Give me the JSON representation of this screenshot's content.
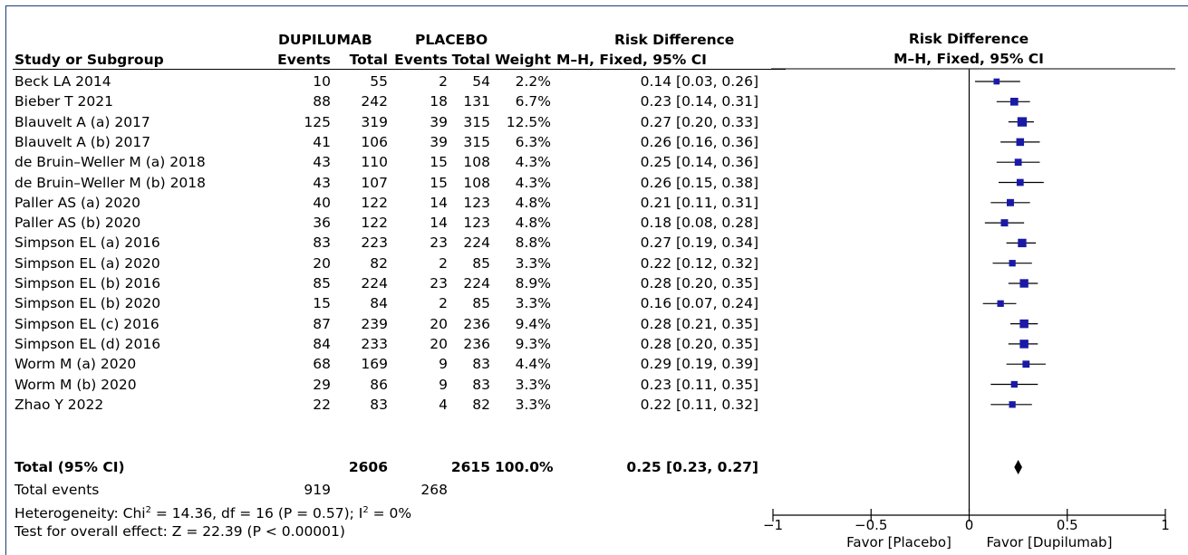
{
  "header": {
    "group1": "DUPILUMAB",
    "group2": "PLACEBO",
    "rd_title": "Risk Difference",
    "col_study": "Study or Subgroup",
    "col_events1": "Events",
    "col_total1": "Total",
    "col_events2": "Events",
    "col_total2": "Total",
    "col_weight": "Weight",
    "col_rd": "M–H, Fixed, 95% CI",
    "plot_title": "Risk Difference",
    "plot_subtitle": "M–H, Fixed, 95% CI"
  },
  "studies": [
    {
      "name": "Beck LA 2014",
      "e1": "10",
      "t1": "55",
      "e2": "2",
      "t2": "54",
      "weight": "2.2%",
      "rd": "0.14 [0.03, 0.26]"
    },
    {
      "name": "Bieber T 2021",
      "e1": "88",
      "t1": "242",
      "e2": "18",
      "t2": "131",
      "weight": "6.7%",
      "rd": "0.23 [0.14, 0.31]"
    },
    {
      "name": "Blauvelt A (a) 2017",
      "e1": "125",
      "t1": "319",
      "e2": "39",
      "t2": "315",
      "weight": "12.5%",
      "rd": "0.27 [0.20, 0.33]"
    },
    {
      "name": "Blauvelt A (b) 2017",
      "e1": "41",
      "t1": "106",
      "e2": "39",
      "t2": "315",
      "weight": "6.3%",
      "rd": "0.26 [0.16, 0.36]"
    },
    {
      "name": "de Bruin–Weller M (a) 2018",
      "e1": "43",
      "t1": "110",
      "e2": "15",
      "t2": "108",
      "weight": "4.3%",
      "rd": "0.25 [0.14, 0.36]"
    },
    {
      "name": "de Bruin–Weller M (b) 2018",
      "e1": "43",
      "t1": "107",
      "e2": "15",
      "t2": "108",
      "weight": "4.3%",
      "rd": "0.26 [0.15, 0.38]"
    },
    {
      "name": "Paller AS (a) 2020",
      "e1": "40",
      "t1": "122",
      "e2": "14",
      "t2": "123",
      "weight": "4.8%",
      "rd": "0.21 [0.11, 0.31]"
    },
    {
      "name": "Paller AS (b) 2020",
      "e1": "36",
      "t1": "122",
      "e2": "14",
      "t2": "123",
      "weight": "4.8%",
      "rd": "0.18 [0.08, 0.28]"
    },
    {
      "name": "Simpson EL (a) 2016",
      "e1": "83",
      "t1": "223",
      "e2": "23",
      "t2": "224",
      "weight": "8.8%",
      "rd": "0.27 [0.19, 0.34]"
    },
    {
      "name": "Simpson EL (a) 2020",
      "e1": "20",
      "t1": "82",
      "e2": "2",
      "t2": "85",
      "weight": "3.3%",
      "rd": "0.22 [0.12, 0.32]"
    },
    {
      "name": "Simpson EL (b) 2016",
      "e1": "85",
      "t1": "224",
      "e2": "23",
      "t2": "224",
      "weight": "8.9%",
      "rd": "0.28 [0.20, 0.35]"
    },
    {
      "name": "Simpson EL (b) 2020",
      "e1": "15",
      "t1": "84",
      "e2": "2",
      "t2": "85",
      "weight": "3.3%",
      "rd": "0.16 [0.07, 0.24]"
    },
    {
      "name": "Simpson EL (c) 2016",
      "e1": "87",
      "t1": "239",
      "e2": "20",
      "t2": "236",
      "weight": "9.4%",
      "rd": "0.28 [0.21, 0.35]"
    },
    {
      "name": "Simpson EL (d) 2016",
      "e1": "84",
      "t1": "233",
      "e2": "20",
      "t2": "236",
      "weight": "9.3%",
      "rd": "0.28 [0.20, 0.35]"
    },
    {
      "name": "Worm M (a) 2020",
      "e1": "68",
      "t1": "169",
      "e2": "9",
      "t2": "83",
      "weight": "4.4%",
      "rd": "0.29 [0.19, 0.39]"
    },
    {
      "name": "Worm M (b) 2020",
      "e1": "29",
      "t1": "86",
      "e2": "9",
      "t2": "83",
      "weight": "3.3%",
      "rd": "0.23 [0.11, 0.35]"
    },
    {
      "name": "Zhao Y 2022",
      "e1": "22",
      "t1": "83",
      "e2": "4",
      "t2": "82",
      "weight": "3.3%",
      "rd": "0.22 [0.11, 0.32]"
    }
  ],
  "total": {
    "label": "Total (95% CI)",
    "t1": "2606",
    "t2": "2615",
    "weight": "100.0%",
    "rd": "0.25 [0.23, 0.27]"
  },
  "total_events": {
    "label": "Total events",
    "e1": "919",
    "e2": "268"
  },
  "heterogeneity": {
    "prefix": "Heterogeneity: Chi",
    "sup1": "2",
    "mid": " = 14.36, df = 16 (P = 0.57); I",
    "sup2": "2",
    "suffix": " = 0%"
  },
  "overall_effect": "Test for overall effect: Z = 22.39 (P < 0.00001)",
  "axis": {
    "favor_left": "Favor [Placebo]",
    "favor_right": "Favor [Dupilumab]"
  },
  "chart_data": {
    "type": "forest",
    "title": "Risk Difference",
    "subtitle": "M–H, Fixed, 95% CI",
    "xlim": [
      -1,
      1
    ],
    "ticks": [
      -1,
      -0.5,
      0,
      0.5,
      1
    ],
    "tick_labels": [
      "−1",
      "−0.5",
      "0",
      "0.5",
      "1"
    ],
    "colors": {
      "marker": "#1a1aa6",
      "diamond": "#000000",
      "line": "#000000"
    },
    "studies": [
      {
        "est": 0.14,
        "lo": 0.03,
        "hi": 0.26,
        "weight": 2.2
      },
      {
        "est": 0.23,
        "lo": 0.14,
        "hi": 0.31,
        "weight": 6.7
      },
      {
        "est": 0.27,
        "lo": 0.2,
        "hi": 0.33,
        "weight": 12.5
      },
      {
        "est": 0.26,
        "lo": 0.16,
        "hi": 0.36,
        "weight": 6.3
      },
      {
        "est": 0.25,
        "lo": 0.14,
        "hi": 0.36,
        "weight": 4.3
      },
      {
        "est": 0.26,
        "lo": 0.15,
        "hi": 0.38,
        "weight": 4.3
      },
      {
        "est": 0.21,
        "lo": 0.11,
        "hi": 0.31,
        "weight": 4.8
      },
      {
        "est": 0.18,
        "lo": 0.08,
        "hi": 0.28,
        "weight": 4.8
      },
      {
        "est": 0.27,
        "lo": 0.19,
        "hi": 0.34,
        "weight": 8.8
      },
      {
        "est": 0.22,
        "lo": 0.12,
        "hi": 0.32,
        "weight": 3.3
      },
      {
        "est": 0.28,
        "lo": 0.2,
        "hi": 0.35,
        "weight": 8.9
      },
      {
        "est": 0.16,
        "lo": 0.07,
        "hi": 0.24,
        "weight": 3.3
      },
      {
        "est": 0.28,
        "lo": 0.21,
        "hi": 0.35,
        "weight": 9.4
      },
      {
        "est": 0.28,
        "lo": 0.2,
        "hi": 0.35,
        "weight": 9.3
      },
      {
        "est": 0.29,
        "lo": 0.19,
        "hi": 0.39,
        "weight": 4.4
      },
      {
        "est": 0.23,
        "lo": 0.11,
        "hi": 0.35,
        "weight": 3.3
      },
      {
        "est": 0.22,
        "lo": 0.11,
        "hi": 0.32,
        "weight": 3.3
      }
    ],
    "total": {
      "est": 0.25,
      "lo": 0.23,
      "hi": 0.27
    }
  }
}
